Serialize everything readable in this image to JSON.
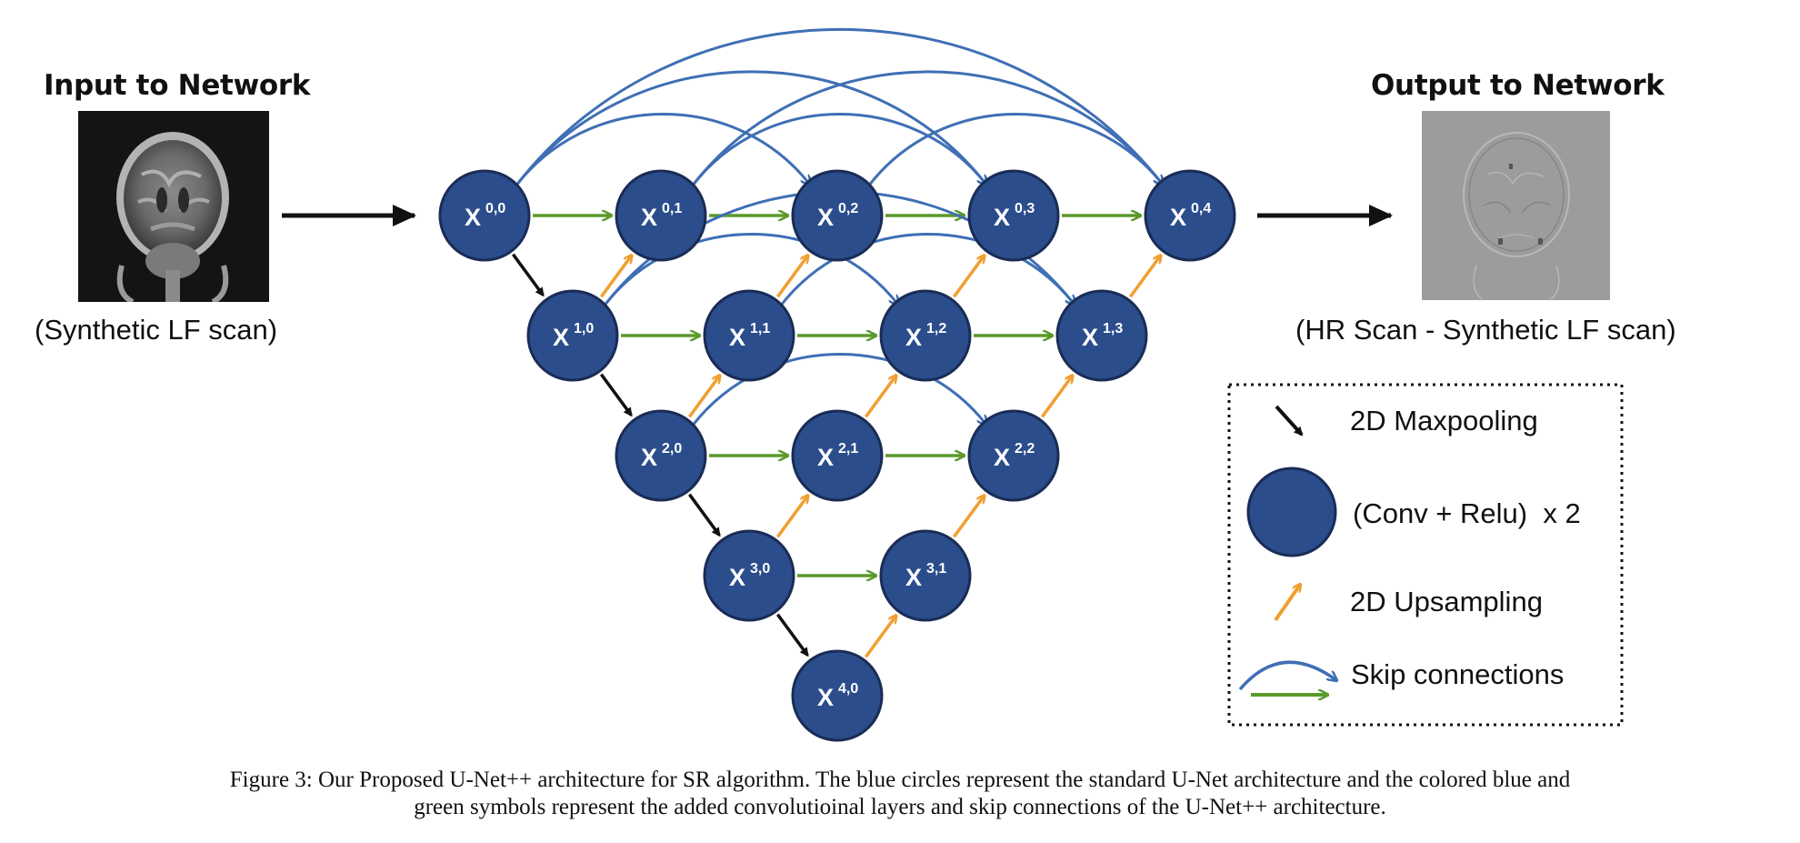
{
  "input": {
    "title": "Input to Network",
    "subtitle": "(Synthetic LF scan)"
  },
  "output": {
    "title": "Output to Network",
    "subtitle": "(HR Scan - Synthetic LF scan)"
  },
  "nodes": [
    {
      "id": "0,0",
      "i": 0,
      "j": 0
    },
    {
      "id": "0,1",
      "i": 0,
      "j": 1
    },
    {
      "id": "0,2",
      "i": 0,
      "j": 2
    },
    {
      "id": "0,3",
      "i": 0,
      "j": 3
    },
    {
      "id": "0,4",
      "i": 0,
      "j": 4
    },
    {
      "id": "1,0",
      "i": 1,
      "j": 0
    },
    {
      "id": "1,1",
      "i": 1,
      "j": 1
    },
    {
      "id": "1,2",
      "i": 1,
      "j": 2
    },
    {
      "id": "1,3",
      "i": 1,
      "j": 3
    },
    {
      "id": "2,0",
      "i": 2,
      "j": 0
    },
    {
      "id": "2,1",
      "i": 2,
      "j": 1
    },
    {
      "id": "2,2",
      "i": 2,
      "j": 2
    },
    {
      "id": "3,0",
      "i": 3,
      "j": 0
    },
    {
      "id": "3,1",
      "i": 3,
      "j": 1
    },
    {
      "id": "4,0",
      "i": 4,
      "j": 0
    }
  ],
  "node_prefix": "X",
  "legend": {
    "maxpool": "2D Maxpooling",
    "conv": "(Conv + Relu)  x 2",
    "upsample": "2D Upsampling",
    "skip": "Skip connections"
  },
  "colors": {
    "node": "#2b4d8c",
    "node_stroke": "#1a2c55",
    "maxpool": "#111111",
    "upsample": "#f0a030",
    "dense_skip": "#5a9a2a",
    "long_skip": "#3f6fb5"
  },
  "caption": {
    "line1": "Figure 3: Our Proposed U-Net++ architecture for SR algorithm. The blue circles represent the standard U-Net architecture and the colored blue and",
    "line2": "green symbols represent the added convolutioinal layers and skip connections of the U-Net++ architecture."
  }
}
